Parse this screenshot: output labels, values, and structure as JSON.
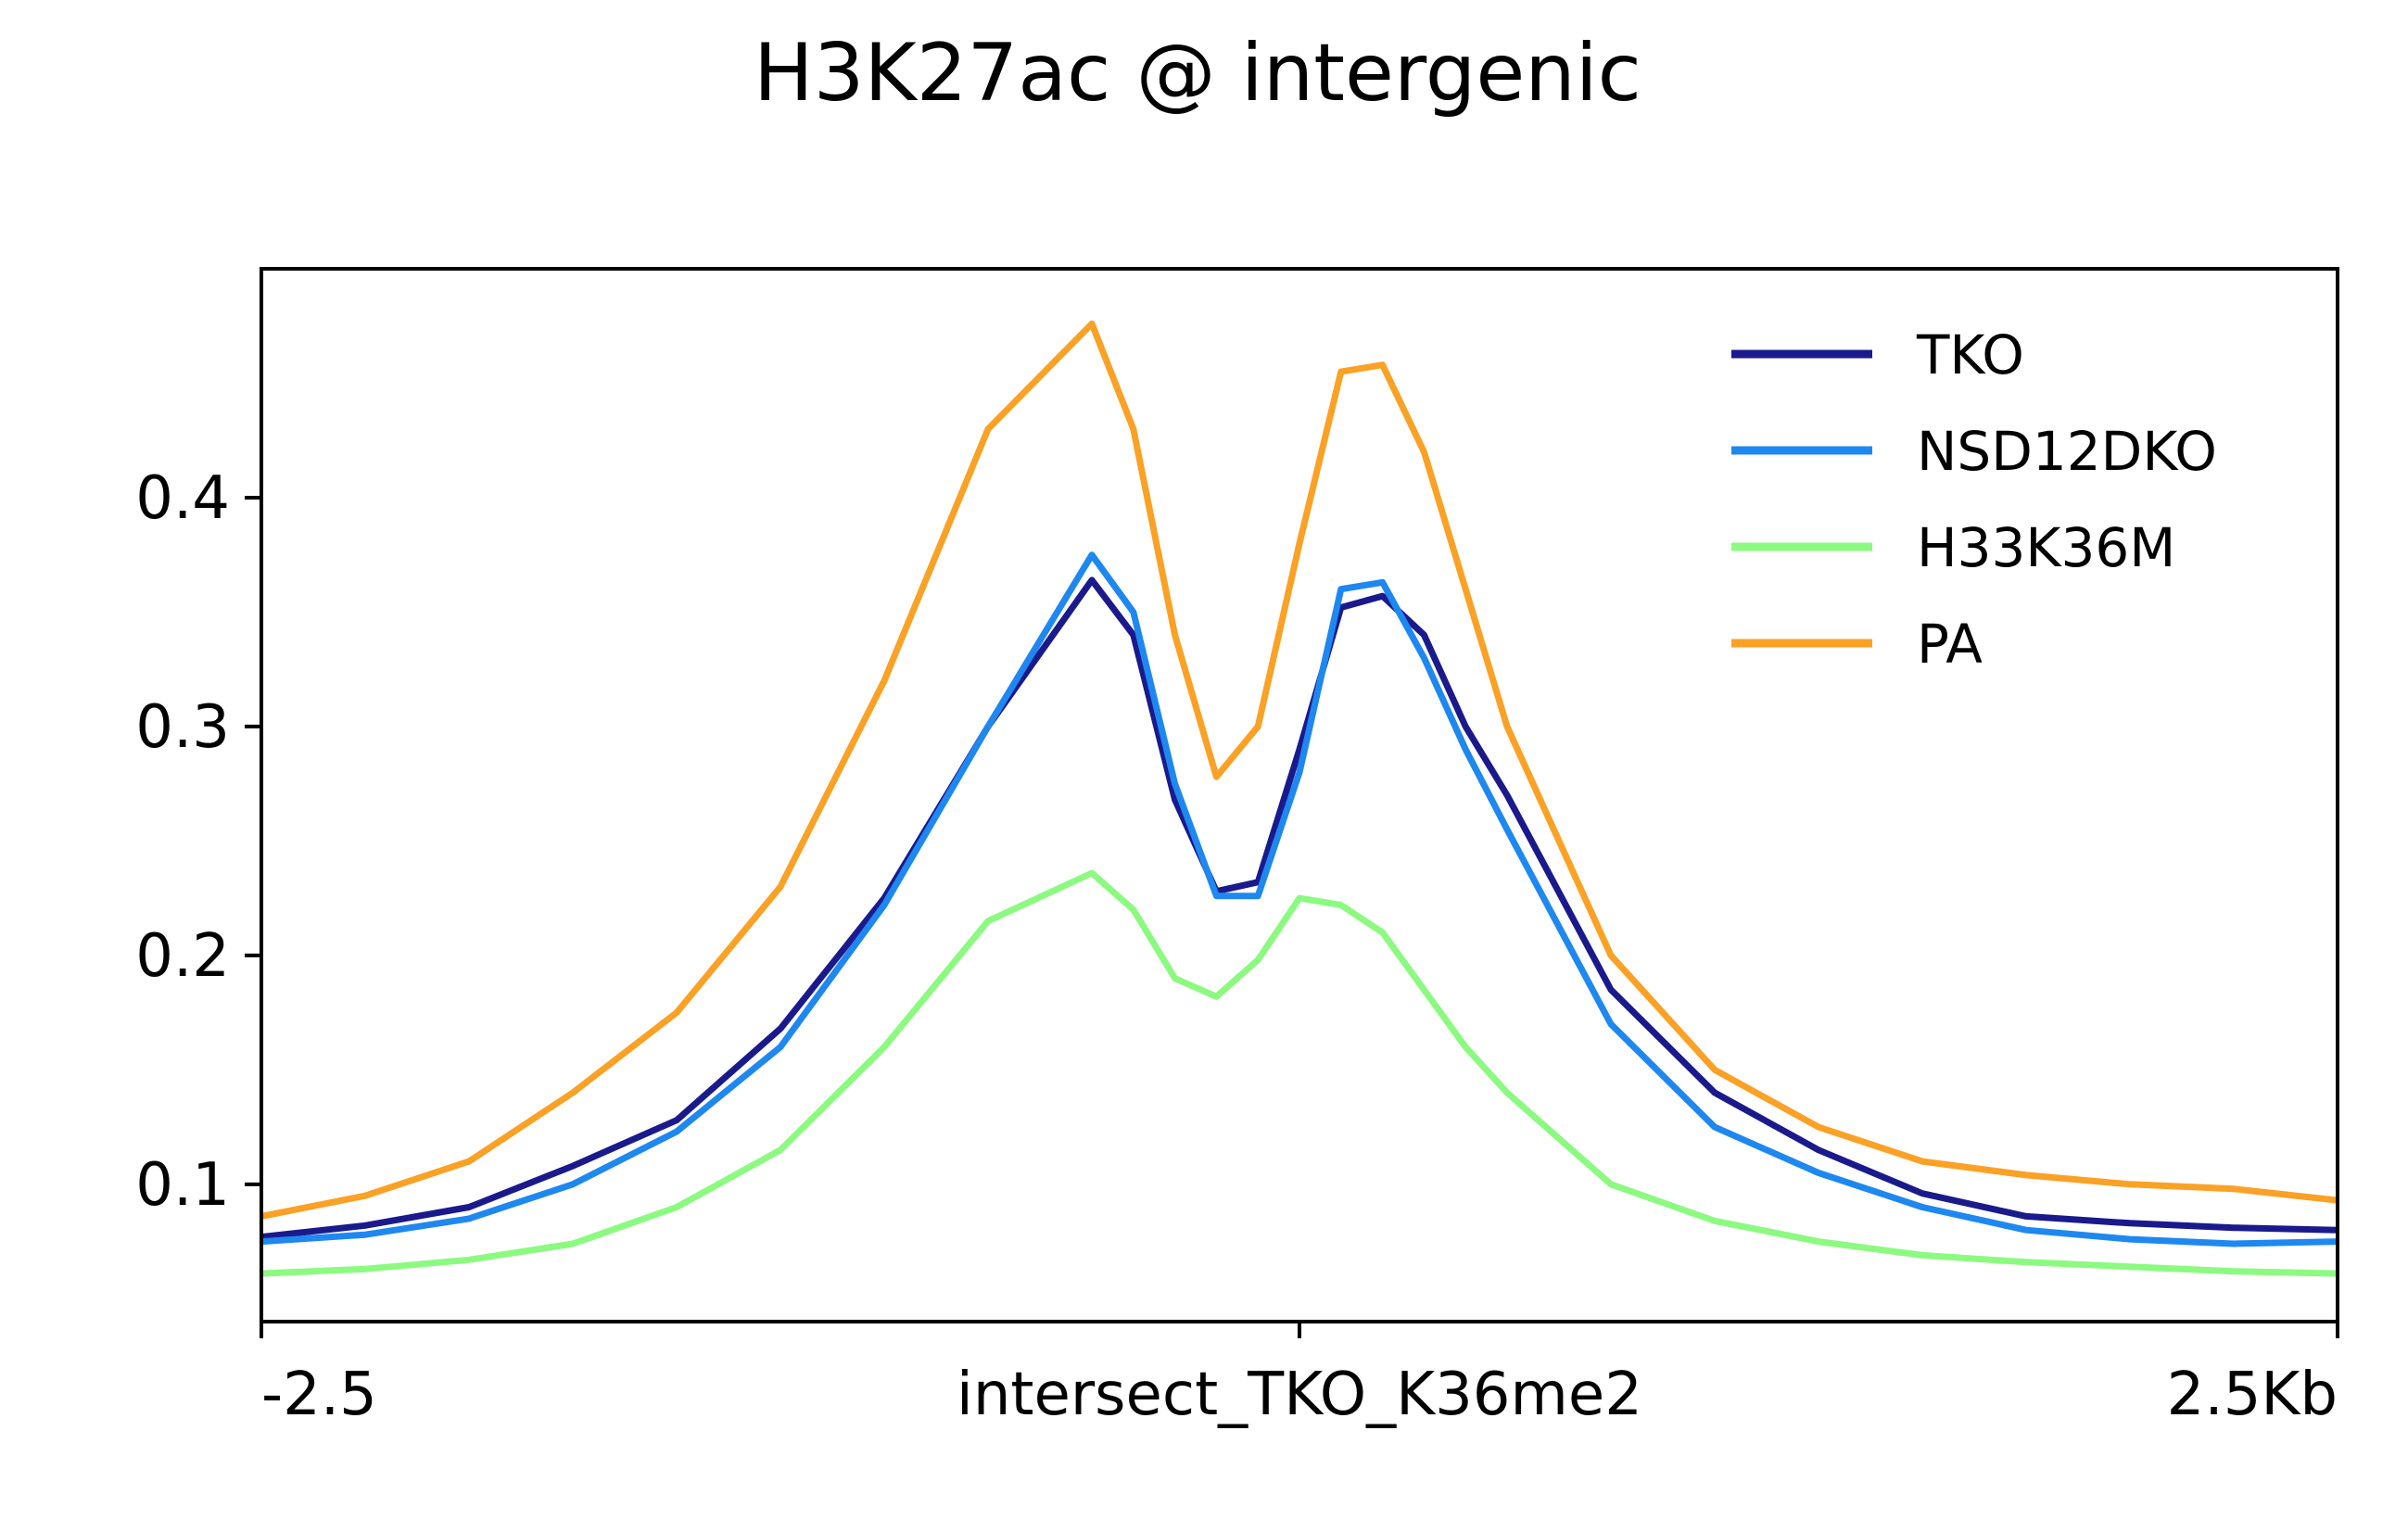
{
  "chart_data": {
    "type": "line",
    "title": "H3K27ac @ intergenic",
    "xlabel": "",
    "ylabel": "",
    "x_ticks": [
      {
        "x": -2.5,
        "label": "-2.5"
      },
      {
        "x": 0,
        "label": "intersect_TKO_K36me2"
      },
      {
        "x": 2.5,
        "label": "2.5Kb"
      }
    ],
    "xlim": [
      -2.5,
      2.5
    ],
    "y_ticks": [
      0.1,
      0.2,
      0.3,
      0.4
    ],
    "y_tick_labels": [
      "0.1",
      "0.2",
      "0.3",
      "0.4"
    ],
    "ylim": [
      0.04,
      0.5
    ],
    "grid": false,
    "legend_position": "top-right",
    "x": [
      -2.5,
      -2.25,
      -2.0,
      -1.75,
      -1.5,
      -1.25,
      -1.0,
      -0.75,
      -0.5,
      -0.4,
      -0.3,
      -0.2,
      -0.1,
      0.0,
      0.1,
      0.2,
      0.3,
      0.4,
      0.5,
      0.75,
      1.0,
      1.25,
      1.5,
      1.75,
      2.0,
      2.25,
      2.5
    ],
    "series": [
      {
        "name": "TKO",
        "color": "#1a1a8c",
        "values": [
          0.077,
          0.082,
          0.09,
          0.108,
          0.128,
          0.168,
          0.225,
          0.3,
          0.364,
          0.34,
          0.268,
          0.228,
          0.232,
          0.29,
          0.352,
          0.357,
          0.34,
          0.3,
          0.27,
          0.185,
          0.14,
          0.115,
          0.096,
          0.086,
          0.083,
          0.081,
          0.08
        ]
      },
      {
        "name": "NSD12DKO",
        "color": "#1e88f0",
        "values": [
          0.075,
          0.078,
          0.085,
          0.1,
          0.123,
          0.16,
          0.222,
          0.3,
          0.375,
          0.35,
          0.275,
          0.226,
          0.226,
          0.28,
          0.36,
          0.363,
          0.33,
          0.29,
          0.255,
          0.17,
          0.125,
          0.105,
          0.09,
          0.08,
          0.076,
          0.074,
          0.075
        ]
      },
      {
        "name": "H33K36M",
        "color": "#8cfa80",
        "values": [
          0.061,
          0.063,
          0.067,
          0.074,
          0.09,
          0.115,
          0.16,
          0.215,
          0.236,
          0.22,
          0.19,
          0.182,
          0.198,
          0.225,
          0.222,
          0.21,
          0.185,
          0.16,
          0.14,
          0.1,
          0.084,
          0.075,
          0.069,
          0.066,
          0.064,
          0.062,
          0.061
        ]
      },
      {
        "name": "PA",
        "color": "#fba125",
        "values": [
          0.086,
          0.095,
          0.11,
          0.14,
          0.175,
          0.23,
          0.32,
          0.43,
          0.476,
          0.43,
          0.34,
          0.278,
          0.3,
          0.38,
          0.455,
          0.458,
          0.42,
          0.36,
          0.3,
          0.2,
          0.15,
          0.125,
          0.11,
          0.104,
          0.1,
          0.098,
          0.093
        ]
      }
    ]
  }
}
